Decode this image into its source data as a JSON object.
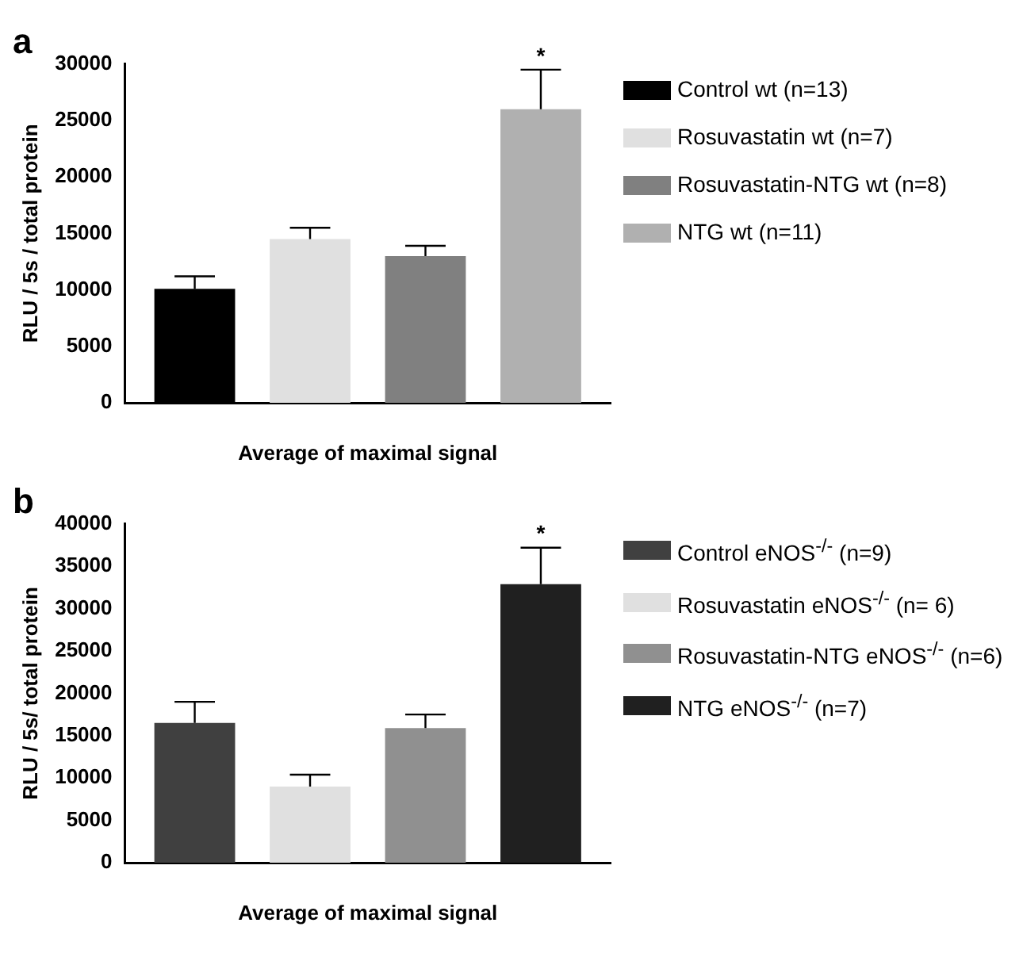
{
  "chart_data": [
    {
      "type": "bar",
      "title": "a",
      "ylabel": "RLU / 5s / total protein",
      "xlabel": "Average of maximal signal",
      "categories": [
        null
      ],
      "ylim": [
        0,
        30000
      ],
      "yticks": [
        0,
        5000,
        10000,
        15000,
        20000,
        25000,
        30000
      ],
      "grid": false,
      "legend": "right",
      "annotations": [
        {
          "text": "*",
          "y": 29500
        }
      ],
      "series": [
        {
          "name": "Control wt (n=13)",
          "color": "#000000",
          "values": [
            10100
          ],
          "errors": [
            [
              10100,
              11200
            ]
          ]
        },
        {
          "name": "Rosuvastatin wt  (n=7)",
          "color": "#e0e0e0",
          "values": [
            14500
          ],
          "errors": [
            [
              14500,
              15500
            ]
          ]
        },
        {
          "name": "Rosuvastatin-NTG wt (n=8)",
          "color": "#808080",
          "values": [
            13000
          ],
          "errors": [
            [
              13000,
              13900
            ]
          ]
        },
        {
          "name": "NTG wt (n=11)",
          "color": "#b0b0b0",
          "values": [
            26000
          ],
          "errors": [
            [
              26000,
              29500
            ]
          ]
        }
      ]
    },
    {
      "type": "bar",
      "title": "b",
      "ylabel": "RLU / 5s/ total protein",
      "xlabel": "Average of maximal signal",
      "categories": [
        null
      ],
      "ylim": [
        0,
        40000
      ],
      "yticks": [
        0,
        5000,
        10000,
        15000,
        20000,
        25000,
        30000,
        35000,
        40000
      ],
      "grid": false,
      "legend": "right",
      "annotations": [
        {
          "text": "*",
          "y": 37200
        }
      ],
      "series": [
        {
          "name": "Control eNOS$^{-/-}$ (n=9)",
          "color": "#404040",
          "values": [
            16500
          ],
          "errors": [
            [
              16500,
              19000
            ]
          ]
        },
        {
          "name": "Rosuvastatin eNOS$^{-/-}$ (n= 6)",
          "color": "#e0e0e0",
          "values": [
            9000
          ],
          "errors": [
            [
              9000,
              10400
            ]
          ]
        },
        {
          "name": "Rosuvastatin-NTG eNOS$^{-/-}$ (n=6)",
          "color": "#909090",
          "values": [
            15900
          ],
          "errors": [
            [
              15900,
              17500
            ]
          ]
        },
        {
          "name": "NTG eNOS$^{-/-}$ (n=7)",
          "color": "#202020",
          "values": [
            32900
          ],
          "errors": [
            [
              32900,
              37200
            ]
          ]
        }
      ]
    }
  ]
}
